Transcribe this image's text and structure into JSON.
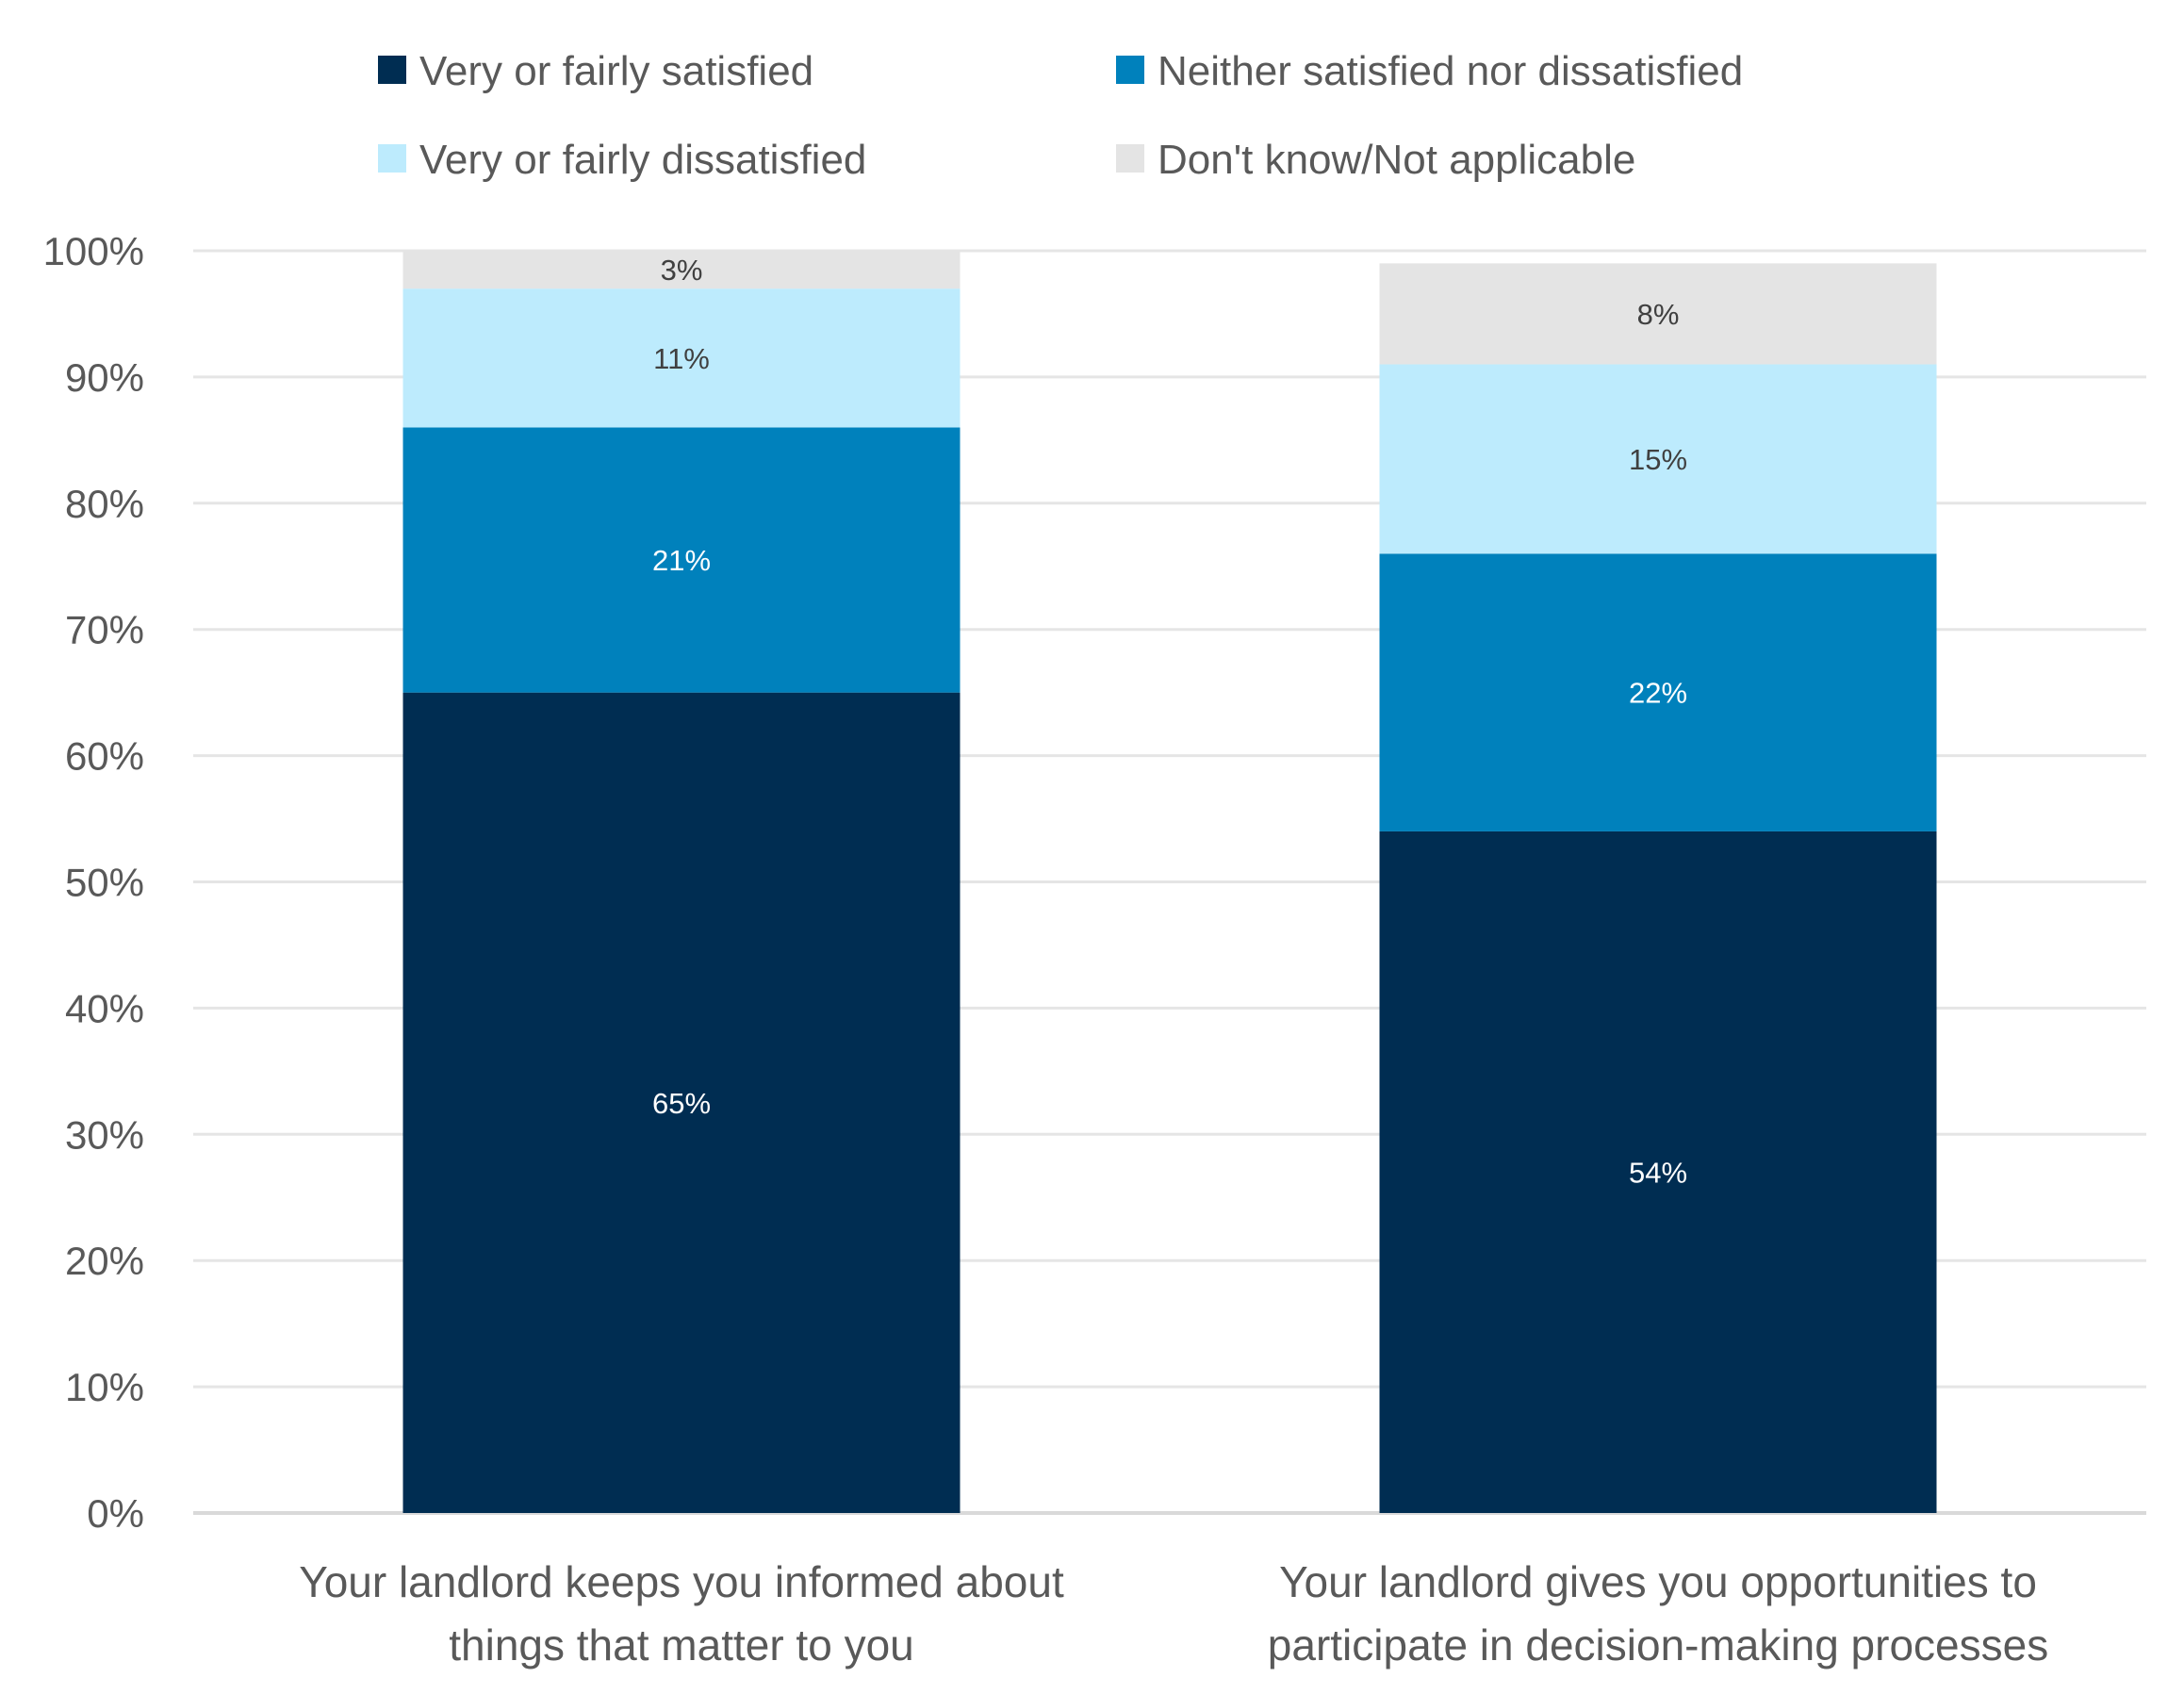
{
  "chart_data": {
    "type": "bar",
    "stacked": true,
    "title": "",
    "xlabel": "",
    "ylabel": "",
    "ylim": [
      0,
      100
    ],
    "yticks": [
      "0%",
      "10%",
      "20%",
      "30%",
      "40%",
      "50%",
      "60%",
      "70%",
      "80%",
      "90%",
      "100%"
    ],
    "grid": true,
    "legend_position": "top",
    "categories": [
      [
        "Your landlord keeps you informed about",
        "things that matter to you"
      ],
      [
        "Your landlord gives you opportunities to",
        "participate in decision-making processes"
      ]
    ],
    "series": [
      {
        "name": "Very or fairly satisfied",
        "color": "#002D52",
        "label_color": "#FFFFFF",
        "values": [
          65,
          54
        ],
        "labels": [
          "65%",
          "54%"
        ]
      },
      {
        "name": "Neither satisfied nor dissatisfied",
        "color": "#0081BC",
        "label_color": "#FFFFFF",
        "values": [
          21,
          22
        ],
        "labels": [
          "21%",
          "22%"
        ]
      },
      {
        "name": "Very or fairly dissatisfied",
        "color": "#BDEBFD",
        "label_color": "#404040",
        "values": [
          11,
          15
        ],
        "labels": [
          "11%",
          "15%"
        ]
      },
      {
        "name": "Don't know/Not applicable",
        "color": "#E4E4E4",
        "label_color": "#404040",
        "values": [
          3,
          8
        ],
        "labels": [
          "3%",
          "8%"
        ]
      }
    ]
  }
}
